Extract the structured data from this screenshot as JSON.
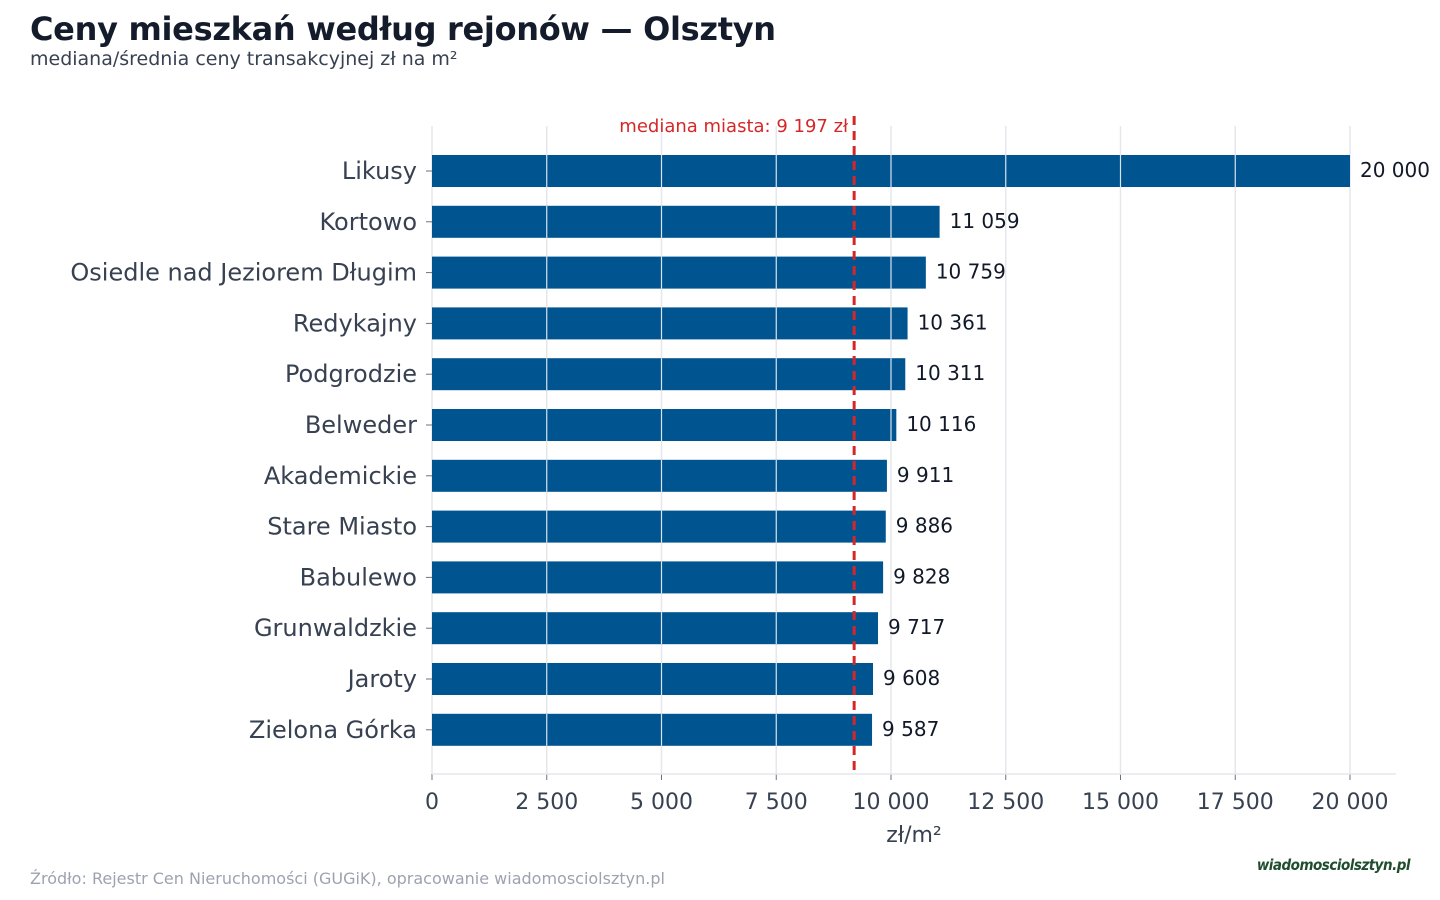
{
  "title": "Ceny mieszkań według rejonów — Olsztyn",
  "subtitle": "mediana/średnia ceny transakcyjnej zł na m²",
  "source": "Źródło: Rejestr Cen Nieruchomości (GUGiK), opracowanie wiadomosciolsztyn.pl",
  "logo_text": "wiadomosciolsztyn.pl",
  "chart_data": {
    "type": "bar",
    "orientation": "horizontal",
    "categories": [
      "Likusy",
      "Kortowo",
      "Osiedle nad Jeziorem Długim",
      "Redykajny",
      "Podgrodzie",
      "Belweder",
      "Akademickie",
      "Stare Miasto",
      "Babulewo",
      "Grunwaldzkie",
      "Jaroty",
      "Zielona Górka"
    ],
    "values": [
      20000,
      11059,
      10759,
      10361,
      10311,
      10116,
      9911,
      9886,
      9828,
      9717,
      9608,
      9587
    ],
    "value_labels": [
      "20 000",
      "11 059",
      "10 759",
      "10 361",
      "10 311",
      "10 116",
      "9 911",
      "9 886",
      "9 828",
      "9 717",
      "9 608",
      "9 587"
    ],
    "xlabel": "zł/m²",
    "ylabel": "",
    "xlim": [
      0,
      21000
    ],
    "xticks": [
      0,
      2500,
      5000,
      7500,
      10000,
      12500,
      15000,
      17500,
      20000
    ],
    "xtick_labels": [
      "0",
      "2 500",
      "5 000",
      "7 500",
      "10 000",
      "12 500",
      "15 000",
      "17 500",
      "20 000"
    ],
    "reference_line": {
      "value": 9197,
      "label": "mediana miasta: 9 197 zł",
      "color": "#d62728",
      "style": "dashed"
    },
    "bar_color": "#00548f",
    "grid": "vertical",
    "legend": "none"
  }
}
